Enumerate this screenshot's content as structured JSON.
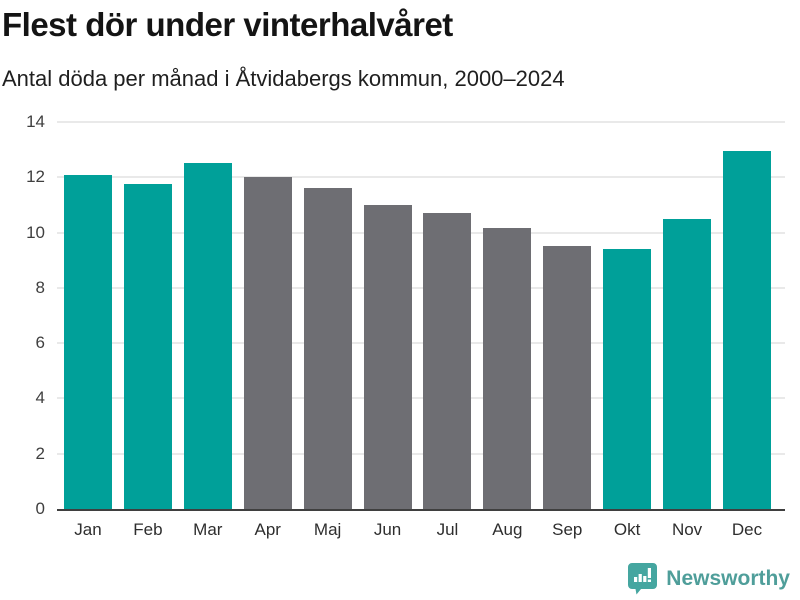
{
  "header": {
    "title": "Flest dör under vinterhalvåret",
    "subtitle": "Antal döda per månad i Åtvidabergs kommun, 2000–2024"
  },
  "chart_data": {
    "type": "bar",
    "title": "Flest dör under vinterhalvåret",
    "subtitle": "Antal döda per månad i Åtvidabergs kommun, 2000–2024",
    "categories": [
      "Jan",
      "Feb",
      "Mar",
      "Apr",
      "Maj",
      "Jun",
      "Jul",
      "Aug",
      "Sep",
      "Okt",
      "Nov",
      "Dec"
    ],
    "values": [
      12.1,
      11.75,
      12.5,
      12.0,
      11.6,
      11.0,
      10.7,
      10.15,
      9.5,
      9.4,
      10.5,
      12.95
    ],
    "highlighted": [
      true,
      true,
      true,
      false,
      false,
      false,
      false,
      false,
      false,
      true,
      true,
      true
    ],
    "xlabel": "",
    "ylabel": "",
    "ylim": [
      0,
      14
    ],
    "yticks": [
      0,
      2,
      4,
      6,
      8,
      10,
      12,
      14
    ],
    "grid": true,
    "legend": "none",
    "colors": {
      "highlight": "#00A099",
      "muted": "#6E6E73",
      "gridline": "#E9E9E9",
      "axis": "#3F3F3F"
    }
  },
  "footer": {
    "brand": "Newsworthy",
    "logo_icon": "speech-bubble-bar-chart",
    "brand_color": "#4F9E9A",
    "logo_fill": "#45A6A0"
  }
}
